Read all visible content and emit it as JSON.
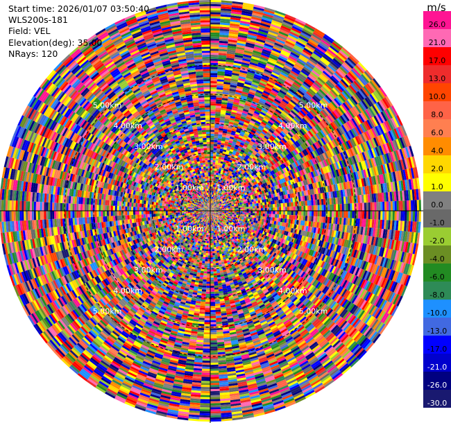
{
  "info": {
    "start_time": "Start time: 2026/01/07 03:50:40",
    "instrument": "WLS200s-181",
    "field": "Field: VEL",
    "elevation": "Elevation(deg): 35.00",
    "nrays": "NRays: 120"
  },
  "chart_data": {
    "type": "heatmap",
    "projection": "polar",
    "title": "",
    "field": "VEL",
    "nrays": 120,
    "ring_labels": [
      "1.00km",
      "2.00km",
      "3.00km",
      "4.00km",
      "5.00km"
    ],
    "range_km": [
      0,
      5.2
    ],
    "grid": true,
    "colorbar": {
      "unit": "m/s",
      "ticks": [
        "26.0",
        "21.0",
        "17.0",
        "13.0",
        "10.0",
        "8.0",
        "6.0",
        "4.0",
        "2.0",
        "1.0",
        "0.0",
        "-1.0",
        "-2.0",
        "-4.0",
        "-6.0",
        "-8.0",
        "-10.0",
        "-13.0",
        "-17.0",
        "-21.0",
        "-26.0",
        "-30.0"
      ],
      "colors": [
        "#ff1493",
        "#ff69b4",
        "#ff0000",
        "#ee2c2c",
        "#ff4500",
        "#ff6347",
        "#ff7f50",
        "#ff8c00",
        "#ffd700",
        "#ffff00",
        "#808080",
        "#696969",
        "#9acd32",
        "#6b8e23",
        "#228b22",
        "#2e8b57",
        "#1e90ff",
        "#4169e1",
        "#0000ff",
        "#0000cd",
        "#000080",
        "#191970"
      ]
    }
  }
}
